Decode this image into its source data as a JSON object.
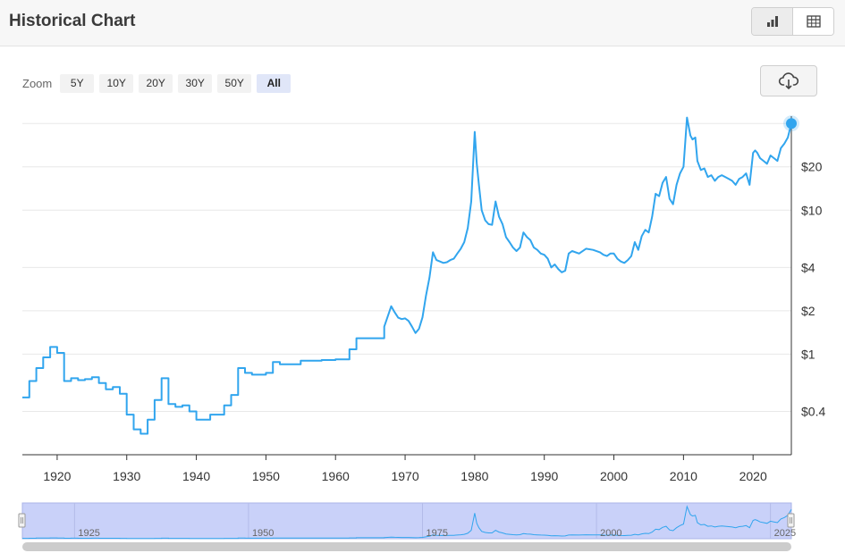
{
  "header": {
    "title": "Historical Chart"
  },
  "view_toggle": {
    "chart_icon": "bar-chart-icon",
    "table_icon": "table-icon"
  },
  "zoom": {
    "label": "Zoom",
    "options": [
      "5Y",
      "10Y",
      "20Y",
      "30Y",
      "50Y",
      "All"
    ],
    "selected": "All"
  },
  "download": {
    "icon": "cloud-download-icon"
  },
  "colors": {
    "line": "#31a5ee",
    "navigator_fill": "#c9d1f9",
    "grid": "#e8e8e8",
    "axis": "#333333"
  },
  "chart_data": {
    "type": "line",
    "y_scale": "log",
    "xlim": [
      1915,
      2025.5
    ],
    "ylim": [
      0.2,
      45
    ],
    "x_ticks": [
      1920,
      1930,
      1940,
      1950,
      1960,
      1970,
      1980,
      1990,
      2000,
      2010,
      2020
    ],
    "x_tick_labels": [
      "1920",
      "1930",
      "1940",
      "1950",
      "1960",
      "1970",
      "1980",
      "1990",
      "2000",
      "2010",
      "2020"
    ],
    "y_ticks": [
      0.4,
      1,
      2,
      4,
      10,
      20
    ],
    "y_tick_labels": [
      "$0.4",
      "$1",
      "$2",
      "$4",
      "$10",
      "$20"
    ],
    "y_gridlines": [
      0.4,
      1,
      2,
      4,
      10,
      20,
      40
    ],
    "grid": true,
    "series": [
      {
        "x": [
          1915,
          1916,
          1916,
          1917,
          1917,
          1918,
          1918,
          1919,
          1919,
          1920,
          1920,
          1921,
          1921,
          1922,
          1922,
          1923,
          1923,
          1924,
          1924,
          1925,
          1925,
          1926,
          1926,
          1927,
          1927,
          1928,
          1928,
          1929,
          1929,
          1930,
          1930,
          1931,
          1931,
          1932,
          1932,
          1933,
          1933,
          1934,
          1934,
          1935,
          1935,
          1936,
          1936,
          1937,
          1937,
          1938,
          1938,
          1939,
          1939,
          1940,
          1940,
          1942,
          1942,
          1944,
          1944,
          1945,
          1945,
          1946,
          1946,
          1947,
          1947,
          1948,
          1948,
          1950,
          1950,
          1951,
          1951,
          1952,
          1952,
          1955,
          1955,
          1958,
          1958,
          1960,
          1960,
          1962,
          1962,
          1963,
          1963,
          1964,
          1964,
          1966,
          1966,
          1967,
          1967,
          1968,
          1968.5,
          1969,
          1969.5,
          1970,
          1970.5,
          1971,
          1971.5,
          1972,
          1972.5,
          1973,
          1973.5,
          1974,
          1974.5,
          1975,
          1975.5,
          1976,
          1976.5,
          1977,
          1977.5,
          1978,
          1978.5,
          1979,
          1979.5,
          1980,
          1980.3,
          1980.6,
          1981,
          1981.5,
          1982,
          1982.5,
          1983,
          1983.5,
          1984,
          1984.5,
          1985,
          1985.5,
          1986,
          1986.5,
          1987,
          1987.5,
          1988,
          1988.5,
          1989,
          1989.5,
          1990,
          1990.5,
          1991,
          1991.5,
          1992,
          1992.5,
          1993,
          1993.5,
          1994,
          1995,
          1996,
          1997,
          1998,
          1998.5,
          1999,
          1999.5,
          2000,
          2000.5,
          2001,
          2001.5,
          2002,
          2002.5,
          2003,
          2003.5,
          2004,
          2004.5,
          2005,
          2005.5,
          2006,
          2006.5,
          2007,
          2007.5,
          2008,
          2008.5,
          2009,
          2009.5,
          2010,
          2010.5,
          2011,
          2011.3,
          2011.7,
          2012,
          2012.5,
          2013,
          2013.5,
          2014,
          2014.5,
          2015,
          2015.5,
          2016,
          2016.5,
          2017,
          2017.5,
          2018,
          2018.5,
          2019,
          2019.5,
          2020,
          2020.3,
          2020.6,
          2021,
          2021.5,
          2022,
          2022.5,
          2023,
          2023.5,
          2024,
          2024.5,
          2025,
          2025.5
        ],
        "y": [
          0.5,
          0.5,
          0.65,
          0.65,
          0.8,
          0.8,
          0.95,
          0.95,
          1.12,
          1.12,
          1.02,
          1.02,
          0.65,
          0.65,
          0.68,
          0.68,
          0.66,
          0.66,
          0.67,
          0.67,
          0.69,
          0.69,
          0.63,
          0.63,
          0.57,
          0.57,
          0.59,
          0.59,
          0.53,
          0.53,
          0.38,
          0.38,
          0.3,
          0.3,
          0.28,
          0.28,
          0.35,
          0.35,
          0.48,
          0.48,
          0.68,
          0.68,
          0.45,
          0.45,
          0.43,
          0.43,
          0.44,
          0.44,
          0.4,
          0.4,
          0.35,
          0.35,
          0.38,
          0.38,
          0.44,
          0.44,
          0.52,
          0.52,
          0.8,
          0.8,
          0.74,
          0.74,
          0.72,
          0.72,
          0.74,
          0.74,
          0.88,
          0.88,
          0.85,
          0.85,
          0.9,
          0.9,
          0.91,
          0.91,
          0.92,
          0.92,
          1.08,
          1.08,
          1.29,
          1.29,
          1.29,
          1.29,
          1.29,
          1.29,
          1.55,
          2.15,
          1.95,
          1.79,
          1.75,
          1.77,
          1.7,
          1.55,
          1.4,
          1.5,
          1.8,
          2.55,
          3.4,
          5.1,
          4.5,
          4.4,
          4.3,
          4.35,
          4.5,
          4.6,
          5.0,
          5.4,
          6.0,
          7.5,
          11.5,
          35,
          21,
          15,
          10,
          8.5,
          8.0,
          7.9,
          11.5,
          9.0,
          8.0,
          6.5,
          6.0,
          5.5,
          5.2,
          5.5,
          7.0,
          6.5,
          6.2,
          5.5,
          5.3,
          5.0,
          4.9,
          4.6,
          4.0,
          4.2,
          3.9,
          3.7,
          3.8,
          5.0,
          5.2,
          5.0,
          5.4,
          5.3,
          5.1,
          4.9,
          4.8,
          5.0,
          5.0,
          4.6,
          4.4,
          4.3,
          4.5,
          4.8,
          6.0,
          5.3,
          6.6,
          7.3,
          7.0,
          9.0,
          13.0,
          12.5,
          15.5,
          17.0,
          12.0,
          11.0,
          15.0,
          18.0,
          20.0,
          44,
          33,
          31,
          32,
          22,
          19,
          19.5,
          17,
          17.5,
          16,
          17.0,
          17.5,
          17.0,
          16.5,
          16.0,
          15.0,
          16.5,
          17.0,
          18.0,
          15.0,
          25,
          26,
          25,
          23,
          22,
          21,
          24,
          23,
          22,
          27,
          29,
          32,
          40
        ]
      }
    ]
  },
  "navigator": {
    "x_labels": [
      "1925",
      "1950",
      "1975",
      "2000",
      "2025"
    ],
    "range": [
      1915,
      2025.5
    ]
  }
}
